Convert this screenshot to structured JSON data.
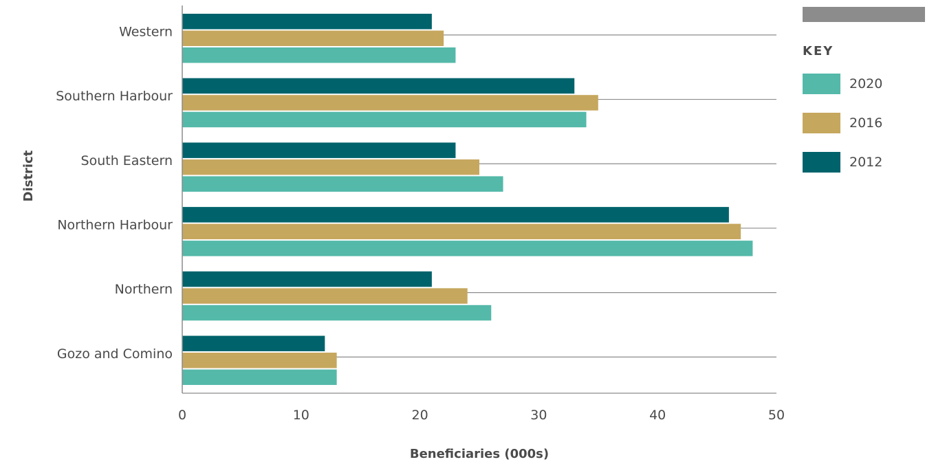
{
  "chart_data": {
    "type": "bar",
    "orientation": "horizontal",
    "categories": [
      "Western",
      "Southern Harbour",
      "South Eastern",
      "Northern Harbour",
      "Northern",
      "Gozo and Comino"
    ],
    "series": [
      {
        "name": "2012",
        "color": "#00636b",
        "values": [
          21,
          33,
          23,
          46,
          21,
          12
        ]
      },
      {
        "name": "2016",
        "color": "#c6a75e",
        "values": [
          22,
          35,
          25,
          47,
          24,
          13
        ]
      },
      {
        "name": "2020",
        "color": "#54b9a9",
        "values": [
          23,
          34,
          27,
          48,
          26,
          13
        ]
      }
    ],
    "xlabel": "Beneficiaries (000s)",
    "ylabel": "District",
    "xlim": [
      0,
      50
    ],
    "xticks": [
      0,
      10,
      20,
      30,
      40,
      50
    ],
    "grid": true,
    "legend_title": "KEY",
    "legend_order": [
      "2020",
      "2016",
      "2012"
    ],
    "legend_placement": "right"
  }
}
